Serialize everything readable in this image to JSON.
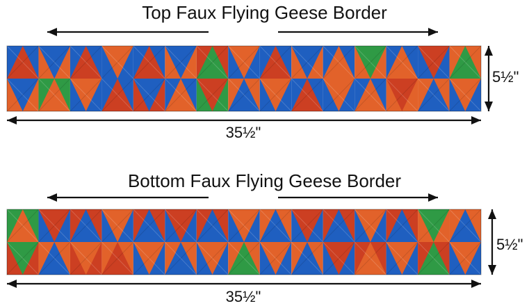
{
  "borders": [
    {
      "title": "Top Faux Flying Geese Border",
      "width_label": "35½\"",
      "height_label": "5½\"",
      "row_top": [
        "rb",
        "bo",
        "rb",
        "ob",
        "rb",
        "bo",
        "gr",
        "ob",
        "rb",
        "bo",
        "ob",
        "go",
        "ob",
        "rb",
        "go"
      ],
      "row_bottom": [
        "bo",
        "og",
        "ob",
        "rb",
        "br",
        "ob",
        "rg",
        "bo",
        "ob",
        "rb",
        "ob",
        "ob",
        "ro",
        "bo",
        "ob"
      ]
    },
    {
      "title": "Bottom Faux Flying Geese Border",
      "width_label": "35½\"",
      "height_label": "5½\"",
      "row_top": [
        "og",
        "rb",
        "br",
        "ob",
        "br",
        "rb",
        "br",
        "ob",
        "bo",
        "rb",
        "br",
        "ob",
        "br",
        "go",
        "bo"
      ],
      "row_bottom": [
        "gr",
        "bo",
        "or",
        "ro",
        "ob",
        "bo",
        "ob",
        "go",
        "ob",
        "bo",
        "rb",
        "or",
        "ob",
        "gr",
        "ob"
      ]
    }
  ],
  "palette": {
    "orange": "#e2622a",
    "blue": "#1f5fc0",
    "light_blue": "#6fb4ec",
    "green": "#2f9a45",
    "yellow": "#f0b43c",
    "red": "#cc3f22",
    "arrow": "#111111"
  }
}
